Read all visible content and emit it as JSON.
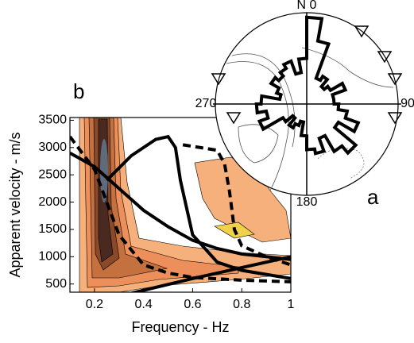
{
  "chart_data": [
    {
      "type": "contour",
      "panel_label": "b",
      "x_label": "Frequency - Hz",
      "y_label": "Apparent velocity - m/s",
      "xlim": [
        0.1,
        1
      ],
      "xticks": [
        0.2,
        0.4,
        0.6,
        0.8,
        1
      ],
      "ylim": [
        350,
        3550
      ],
      "yticks": [
        500,
        1000,
        1500,
        2000,
        2500,
        3000,
        3500
      ],
      "series": [
        {
          "style": "solid",
          "color": "#000000",
          "x": [
            0.1,
            0.2,
            0.3,
            0.4,
            0.5,
            0.6,
            0.7,
            0.8,
            0.9,
            1
          ],
          "values": [
            2900,
            2650,
            2250,
            1850,
            1550,
            1300,
            1150,
            1050,
            1000,
            950
          ]
        },
        {
          "style": "solid",
          "color": "#000000",
          "x": [
            0.25,
            0.35,
            0.45,
            0.5,
            0.53,
            0.55,
            0.6,
            0.7,
            0.8,
            1
          ],
          "values": [
            2400,
            2850,
            3150,
            3200,
            3000,
            2400,
            1400,
            900,
            750,
            600
          ]
        },
        {
          "style": "solid",
          "color": "#000000",
          "x": [
            0.35,
            0.6,
            0.8,
            1
          ],
          "values": [
            330,
            600,
            800,
            1000
          ]
        },
        {
          "style": "dashed",
          "color": "#000000",
          "x": [
            0.1,
            0.2,
            0.3,
            0.4,
            0.5,
            0.6,
            0.8,
            1
          ],
          "values": [
            3200,
            2600,
            1400,
            850,
            700,
            620,
            570,
            540
          ]
        },
        {
          "style": "dashed",
          "color": "#000000",
          "x": [
            0.56,
            0.7,
            0.73,
            0.75,
            0.77,
            0.8,
            0.9,
            1
          ],
          "values": [
            3050,
            2950,
            2700,
            2200,
            1500,
            1200,
            1000,
            850
          ]
        }
      ]
    },
    {
      "type": "rose",
      "panel_label": "a",
      "rlim": [
        0,
        1
      ],
      "color": "#000000",
      "angle_labels": [
        {
          "value": 0,
          "label": "N 0"
        },
        {
          "value": 90,
          "label": "90"
        },
        {
          "value": 180,
          "label": "180"
        },
        {
          "value": 270,
          "label": "270"
        }
      ],
      "values": [
        0.95,
        0.7,
        0.3,
        0.35,
        0.25,
        0.3,
        0.45,
        0.3,
        0.3,
        0.35,
        0.45,
        0.6,
        0.4,
        0.7,
        0.6,
        0.4,
        0.55,
        0.5,
        0.35,
        0.2,
        0.25,
        0.3,
        0.2,
        0.3,
        0.55,
        0.45,
        0.55,
        0.5,
        0.3,
        0.35,
        0.45,
        0.4,
        0.45,
        0.5,
        0.35,
        0.5
      ]
    }
  ]
}
